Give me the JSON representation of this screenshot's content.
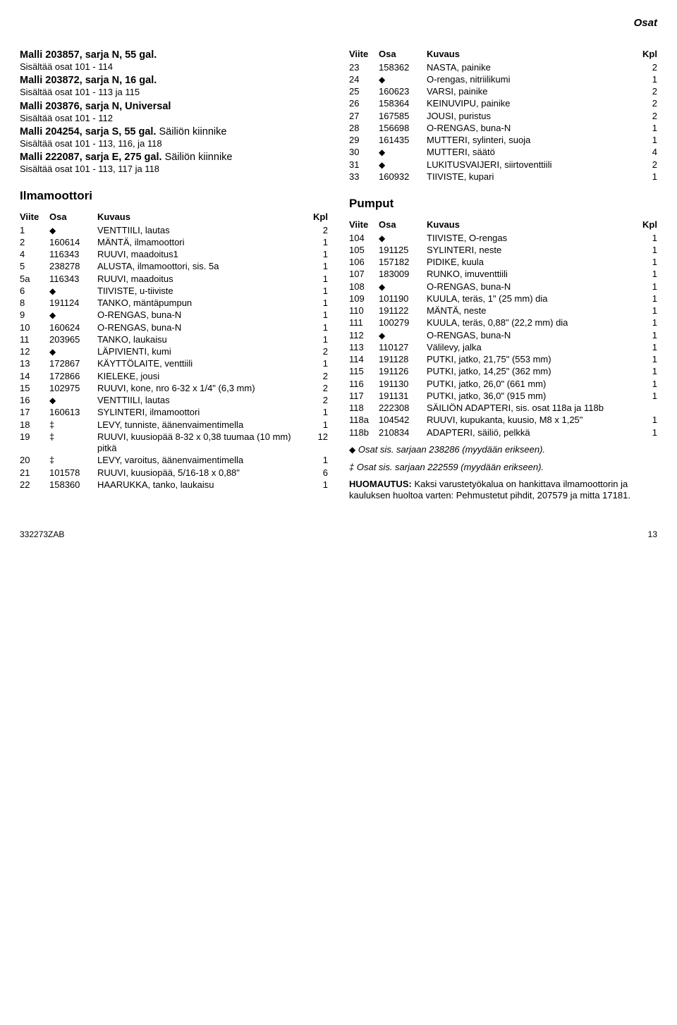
{
  "page": {
    "section": "Osat",
    "docnum": "332273ZAB",
    "pagenum": "13"
  },
  "models": [
    {
      "title": "Malli 203857, sarja N, 55 gal.",
      "sub": "Sisältää osat 101 - 114"
    },
    {
      "title": "Malli 203872, sarja N, 16 gal.",
      "sub": "Sisältää osat 101 - 113 ja 115"
    },
    {
      "title": "Malli 203876, sarja N, Universal",
      "sub": "Sisältää osat 101 - 112"
    },
    {
      "title": "Malli 204254, sarja S, 55 gal.",
      "sub": "Sisältää osat 101 - 113, 116, ja 118",
      "tail": "Säiliön kiinnike"
    },
    {
      "title": "Malli 222087, sarja E, 275 gal.",
      "sub": "Sisältää osat 101 - 113, 117 ja 118",
      "tail": "Säiliön kiinnike"
    }
  ],
  "h_ilma": "Ilmamoottori",
  "h_pumput": "Pumput",
  "th": {
    "viite": "Viite",
    "osa": "Osa",
    "kuvaus": "Kuvaus",
    "kpl": "Kpl"
  },
  "ilma_rows": [
    {
      "r": "1",
      "p": "◆",
      "d": "VENTTIILI, lautas",
      "q": "2"
    },
    {
      "r": "2",
      "p": "160614",
      "d": "MÄNTÄ, ilmamoottori",
      "q": "1"
    },
    {
      "r": "4",
      "p": "116343",
      "d": "RUUVI, maadoitus1",
      "q": "1"
    },
    {
      "r": "5",
      "p": "238278",
      "d": "ALUSTA, ilmamoottori, sis. 5a",
      "q": "1"
    },
    {
      "r": "5a",
      "p": "116343",
      "d": "RUUVI, maadoitus",
      "q": "1"
    },
    {
      "r": "6",
      "p": "◆",
      "d": "TIIVISTE, u-tiiviste",
      "q": "1"
    },
    {
      "r": "8",
      "p": "191124",
      "d": "TANKO, mäntäpumpun",
      "q": "1"
    },
    {
      "r": "9",
      "p": "◆",
      "d": "O-RENGAS, buna-N",
      "q": "1"
    },
    {
      "r": "10",
      "p": "160624",
      "d": "O-RENGAS, buna-N",
      "q": "1"
    },
    {
      "r": "11",
      "p": "203965",
      "d": "TANKO, laukaisu",
      "q": "1"
    },
    {
      "r": "12",
      "p": "◆",
      "d": "LÄPIVIENTI, kumi",
      "q": "2"
    },
    {
      "r": "13",
      "p": "172867",
      "d": "KÄYTTÖLAITE, venttiili",
      "q": "1"
    },
    {
      "r": "14",
      "p": "172866",
      "d": "KIELEKE, jousi",
      "q": "2"
    },
    {
      "r": "15",
      "p": "102975",
      "d": "RUUVI, kone, nro 6-32 x 1/4\" (6,3 mm)",
      "q": "2"
    },
    {
      "r": "16",
      "p": "◆",
      "d": "VENTTIILI, lautas",
      "q": "2"
    },
    {
      "r": "17",
      "p": "160613",
      "d": "SYLINTERI, ilmamoottori",
      "q": "1"
    },
    {
      "r": "18",
      "p": "‡",
      "d": "LEVY, tunniste, äänenvaimentimella",
      "q": "1"
    },
    {
      "r": "19",
      "p": "‡",
      "d": "RUUVI, kuusiopää 8-32 x 0,38 tuumaa (10 mm) pitkä",
      "q": "12"
    },
    {
      "r": "20",
      "p": "‡",
      "d": "LEVY, varoitus, äänenvaimentimella",
      "q": "1"
    },
    {
      "r": "21",
      "p": "101578",
      "d": "RUUVI, kuusiopää, 5/16-18 x 0,88\"",
      "q": "6"
    },
    {
      "r": "22",
      "p": "158360",
      "d": "HAARUKKA, tanko, laukaisu",
      "q": "1"
    }
  ],
  "ilma2_rows": [
    {
      "r": "23",
      "p": "158362",
      "d": "NASTA, painike",
      "q": "2"
    },
    {
      "r": "24",
      "p": "◆",
      "d": "O-rengas, nitriilikumi",
      "q": "1"
    },
    {
      "r": "25",
      "p": "160623",
      "d": "VARSI, painike",
      "q": "2"
    },
    {
      "r": "26",
      "p": "158364",
      "d": "KEINUVIPU, painike",
      "q": "2"
    },
    {
      "r": "27",
      "p": "167585",
      "d": "JOUSI, puristus",
      "q": "2"
    },
    {
      "r": "28",
      "p": "156698",
      "d": "O-RENGAS, buna-N",
      "q": "1"
    },
    {
      "r": "29",
      "p": "161435",
      "d": "MUTTERI, sylinteri, suoja",
      "q": "1"
    },
    {
      "r": "30",
      "p": "◆",
      "d": "MUTTERI, säätö",
      "q": "4"
    },
    {
      "r": "31",
      "p": "◆",
      "d": "LUKITUSVAIJERI, siirtoventtiili",
      "q": "2"
    },
    {
      "r": "33",
      "p": "160932",
      "d": "TIIVISTE, kupari",
      "q": "1"
    }
  ],
  "pump_rows": [
    {
      "r": "104",
      "p": "◆",
      "d": "TIIVISTE, O-rengas",
      "q": "1"
    },
    {
      "r": "105",
      "p": "191125",
      "d": "SYLINTERI, neste",
      "q": "1"
    },
    {
      "r": "106",
      "p": "157182",
      "d": "PIDIKE, kuula",
      "q": "1"
    },
    {
      "r": "107",
      "p": "183009",
      "d": "RUNKO, imuventtiili",
      "q": "1"
    },
    {
      "r": "108",
      "p": "◆",
      "d": "O-RENGAS, buna-N",
      "q": "1"
    },
    {
      "r": "109",
      "p": "101190",
      "d": "KUULA, teräs, 1\" (25 mm) dia",
      "q": "1"
    },
    {
      "r": "110",
      "p": "191122",
      "d": "MÄNTÄ, neste",
      "q": "1"
    },
    {
      "r": "111",
      "p": "100279",
      "d": "KUULA, teräs, 0,88\" (22,2 mm) dia",
      "q": "1"
    },
    {
      "r": "112",
      "p": "◆",
      "d": "O-RENGAS, buna-N",
      "q": "1"
    },
    {
      "r": "113",
      "p": "110127",
      "d": "Välilevy, jalka",
      "q": "1"
    },
    {
      "r": "114",
      "p": "191128",
      "d": "PUTKI, jatko, 21,75\" (553 mm)",
      "q": "1"
    },
    {
      "r": "115",
      "p": "191126",
      "d": "PUTKI, jatko, 14,25\" (362 mm)",
      "q": "1"
    },
    {
      "r": "116",
      "p": "191130",
      "d": "PUTKI, jatko, 26,0\" (661 mm)",
      "q": "1"
    },
    {
      "r": "117",
      "p": "191131",
      "d": "PUTKI, jatko, 36,0\" (915 mm)",
      "q": "1"
    },
    {
      "r": "118",
      "p": "222308",
      "d": "SÄILIÖN ADAPTERI, sis. osat 118a ja 118b",
      "q": ""
    },
    {
      "r": "118a",
      "p": "104542",
      "d": "RUUVI, kupukanta, kuusio, M8 x 1,25\"",
      "q": "1"
    },
    {
      "r": "118b",
      "p": "210834",
      "d": "ADAPTERI, säiliö, pelkkä",
      "q": "1"
    }
  ],
  "notes": {
    "n1_sym": "◆",
    "n1_txt": "Osat sis. sarjaan 238286 (myydään erikseen).",
    "n2_sym": "‡",
    "n2_txt": "Osat sis. sarjaan 222559 (myydään erikseen).",
    "huom_label": "HUOMAUTUS:",
    "huom_txt": " Kaksi varustetyökalua on hankittava ilmamoottorin ja kauluksen huoltoa varten: Pehmustetut pihdit, 207579 ja mitta 17181."
  }
}
